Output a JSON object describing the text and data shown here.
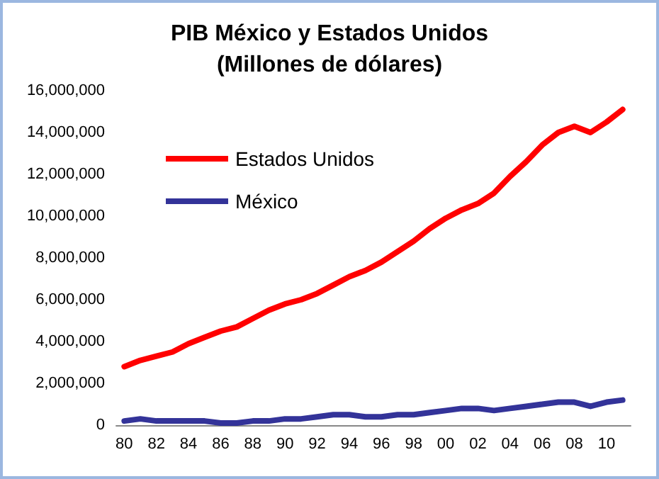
{
  "chart_data": {
    "type": "line",
    "title": "PIB México y Estados Unidos\n(Millones de dólares)",
    "categories": [
      "80",
      null,
      "82",
      null,
      "84",
      null,
      "86",
      null,
      "88",
      null,
      "90",
      null,
      "92",
      null,
      "94",
      null,
      "96",
      null,
      "98",
      null,
      "00",
      null,
      "02",
      null,
      "04",
      null,
      "06",
      null,
      "08",
      null,
      "10",
      null
    ],
    "series": [
      {
        "name": "Estados Unidos",
        "color": "#ff0000",
        "values": [
          2800000,
          3100000,
          3300000,
          3500000,
          3900000,
          4200000,
          4500000,
          4700000,
          5100000,
          5500000,
          5800000,
          6000000,
          6300000,
          6700000,
          7100000,
          7400000,
          7800000,
          8300000,
          8800000,
          9400000,
          9900000,
          10300000,
          10600000,
          11100000,
          11900000,
          12600000,
          13400000,
          14000000,
          14300000,
          14000000,
          14500000,
          15100000
        ]
      },
      {
        "name": "México",
        "color": "#333399",
        "values": [
          200000,
          300000,
          200000,
          200000,
          200000,
          200000,
          100000,
          100000,
          200000,
          200000,
          300000,
          300000,
          400000,
          500000,
          500000,
          400000,
          400000,
          500000,
          500000,
          600000,
          700000,
          800000,
          800000,
          700000,
          800000,
          900000,
          1000000,
          1100000,
          1100000,
          900000,
          1100000,
          1200000
        ]
      }
    ],
    "ylim": [
      0,
      16000000
    ],
    "yticks": [
      0,
      {
        "value": 2000000,
        "label": "2,000,000"
      },
      {
        "value": 4000000,
        "label": "4,000,000"
      },
      {
        "value": 6000000,
        "label": "6,000,000"
      },
      {
        "value": 8000000,
        "label": "8,000,000"
      },
      {
        "value": 10000000,
        "label": "10,000,000"
      },
      {
        "value": 12000000,
        "label": "12,000,000"
      },
      {
        "value": 14000000,
        "label": "14,000,000"
      },
      {
        "value": 16000000,
        "label": "16,000,000"
      }
    ],
    "grid": false,
    "legend": "top left",
    "marker": "none",
    "line_style": "solid"
  }
}
